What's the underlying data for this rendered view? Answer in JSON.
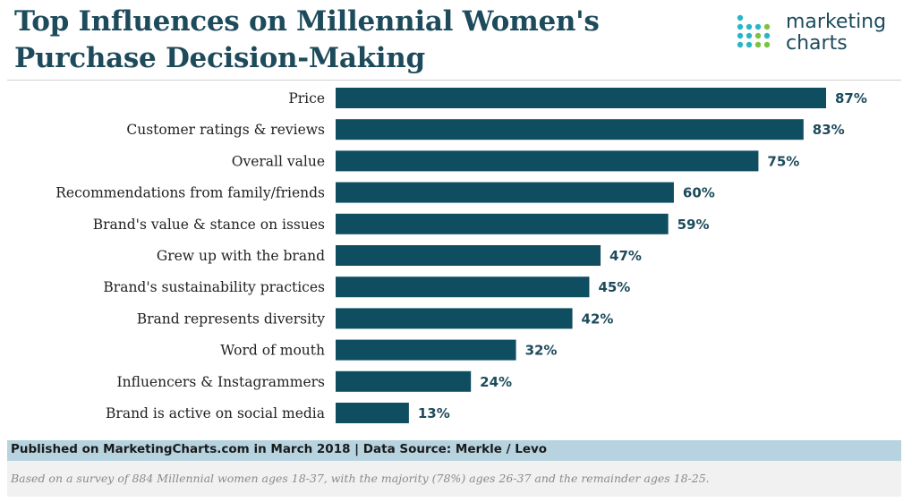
{
  "header": {
    "title_line1": "Top Influences on Millennial Women's",
    "title_line2": "Purchase Decision-Making"
  },
  "logo": {
    "line1": "marketing",
    "line2": "charts",
    "colors": {
      "teal": "#2bb6c8",
      "green": "#7cc242"
    }
  },
  "footer": {
    "published": "Published on MarketingCharts.com in March 2018 | Data Source: Merkle / Levo",
    "note": "Based on a survey of 884 Millennial women ages 18-37, with the majority (78%) ages 26-37 and the remainder ages 18-25."
  },
  "colors": {
    "bar": "#0f4e61",
    "title": "#1d4b5c",
    "band": "#b6d3df"
  },
  "chart_data": {
    "type": "bar",
    "orientation": "horizontal",
    "title": "Top Influences on Millennial Women's Purchase Decision-Making",
    "categories": [
      "Price",
      "Customer ratings & reviews",
      "Overall value",
      "Recommendations from family/friends",
      "Brand's value & stance on issues",
      "Grew up with the brand",
      "Brand's sustainability practices",
      "Brand represents diversity",
      "Word of mouth",
      "Influencers & Instagrammers",
      "Brand is active on social media"
    ],
    "values": [
      87,
      83,
      75,
      60,
      59,
      47,
      45,
      42,
      32,
      24,
      13
    ],
    "value_labels": [
      "87%",
      "83%",
      "75%",
      "60%",
      "59%",
      "47%",
      "45%",
      "42%",
      "32%",
      "24%",
      "13%"
    ],
    "unit": "%",
    "xlim": [
      0,
      87
    ],
    "xlabel": "",
    "ylabel": "",
    "grid": false,
    "legend": "none"
  }
}
